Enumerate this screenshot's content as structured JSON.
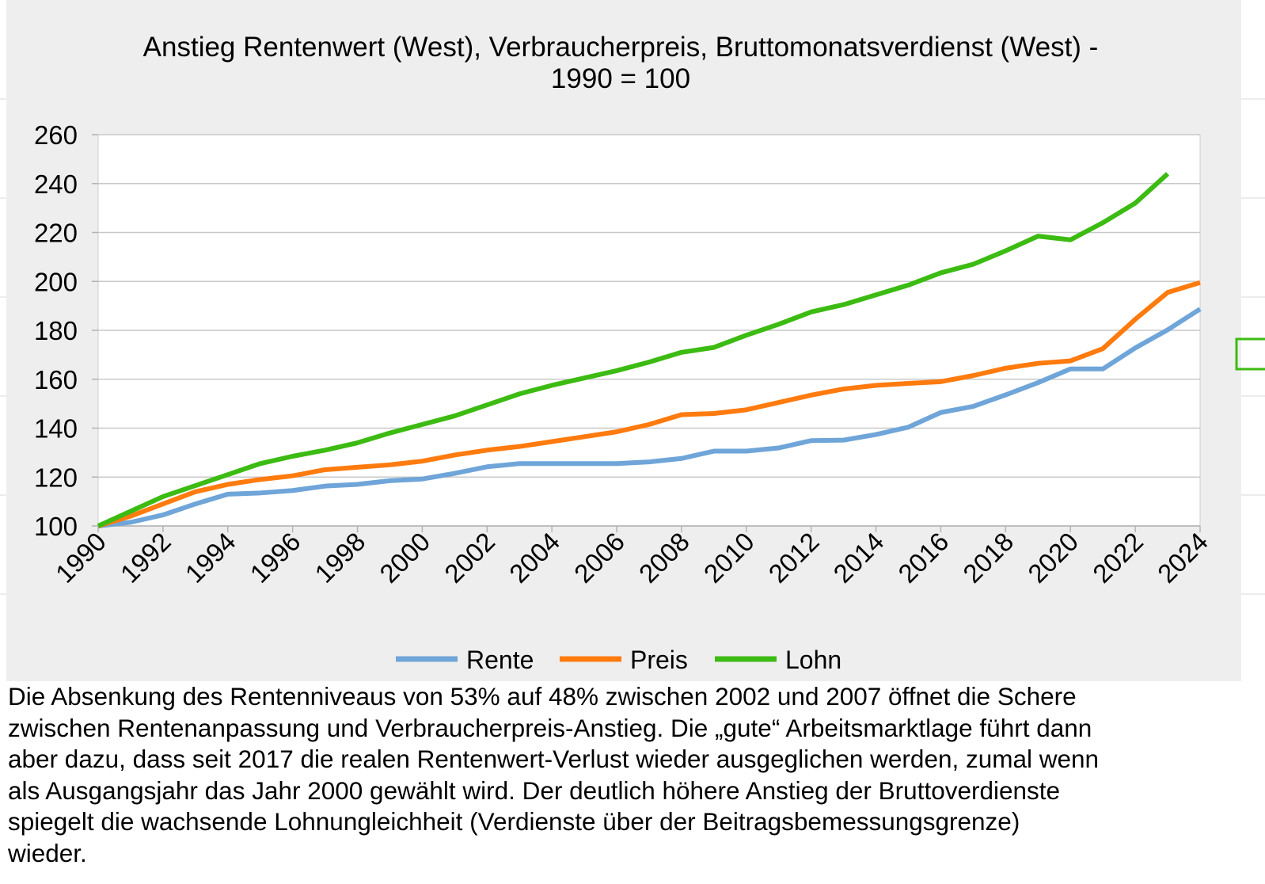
{
  "chart_data": {
    "type": "line",
    "title": "Anstieg Rentenwert (West), Verbraucherpreis, Bruttomonatsverdienst (West) - 1990 = 100",
    "x": [
      1990,
      1991,
      1992,
      1993,
      1994,
      1995,
      1996,
      1997,
      1998,
      1999,
      2000,
      2001,
      2002,
      2003,
      2004,
      2005,
      2006,
      2007,
      2008,
      2009,
      2010,
      2011,
      2012,
      2013,
      2014,
      2015,
      2016,
      2017,
      2018,
      2019,
      2020,
      2021,
      2022,
      2023,
      2024
    ],
    "xlim": [
      1990,
      2024
    ],
    "xticks": [
      1990,
      1992,
      1994,
      1996,
      1998,
      2000,
      2002,
      2004,
      2006,
      2008,
      2010,
      2012,
      2014,
      2016,
      2018,
      2020,
      2022,
      2024
    ],
    "ylim": [
      100,
      260
    ],
    "yticks": [
      100,
      120,
      140,
      160,
      180,
      200,
      220,
      240,
      260
    ],
    "grid": true,
    "legend": "bottom",
    "series": [
      {
        "name": "Rente",
        "color": "#6fa5d8",
        "values": [
          100,
          101.5,
          104.5,
          109,
          113,
          113.5,
          114.5,
          116.3,
          117,
          118.5,
          119.2,
          121.5,
          124.2,
          125.5,
          125.5,
          125.5,
          125.5,
          126.2,
          127.6,
          130.6,
          130.6,
          131.9,
          134.9,
          135.1,
          137.4,
          140.4,
          146.4,
          148.9,
          153.6,
          158.6,
          164.2,
          164.2,
          172.8,
          180.2,
          188.7
        ]
      },
      {
        "name": "Preis",
        "color": "#ff7b0e",
        "values": [
          100,
          104,
          109,
          114,
          117,
          119,
          120.5,
          123,
          124,
          125,
          126.5,
          129,
          131,
          132.5,
          134.5,
          136.5,
          138.5,
          141.5,
          145.5,
          146,
          147.5,
          150.5,
          153.5,
          156,
          157.5,
          158.3,
          159,
          161.5,
          164.5,
          166.5,
          167.5,
          172.5,
          184.5,
          195.5,
          199.5
        ]
      },
      {
        "name": "Lohn",
        "color": "#3cbb12",
        "values": [
          100,
          106,
          112,
          116.5,
          121,
          125.5,
          128.5,
          131,
          134,
          138,
          141.5,
          145,
          149.5,
          154,
          157.5,
          160.5,
          163.5,
          167,
          171,
          173,
          178,
          182.5,
          187.5,
          190.5,
          194.5,
          198.5,
          203.5,
          207,
          212.5,
          218.5,
          217,
          224,
          232,
          244,
          null
        ]
      }
    ],
    "description": [
      "Die Absenkung des Rentenniveaus von 53% auf 48% zwischen 2002 und 2007 öffnet die Schere",
      "zwischen Rentenanpassung und Verbraucherpreis-Anstieg. Die „gute“ Arbeitsmarktlage führt dann",
      "aber dazu, dass seit 2017 die realen Rentenwert-Verlust wieder ausgeglichen werden, zumal wenn",
      "als Ausgangsjahr das Jahr 2000 gewählt wird. Der deutlich höhere Anstieg der Bruttoverdienste",
      "spiegelt die wachsende Lohnungleichheit (Verdienste über der Beitragsbemessungsgrenze)",
      "wieder."
    ]
  }
}
